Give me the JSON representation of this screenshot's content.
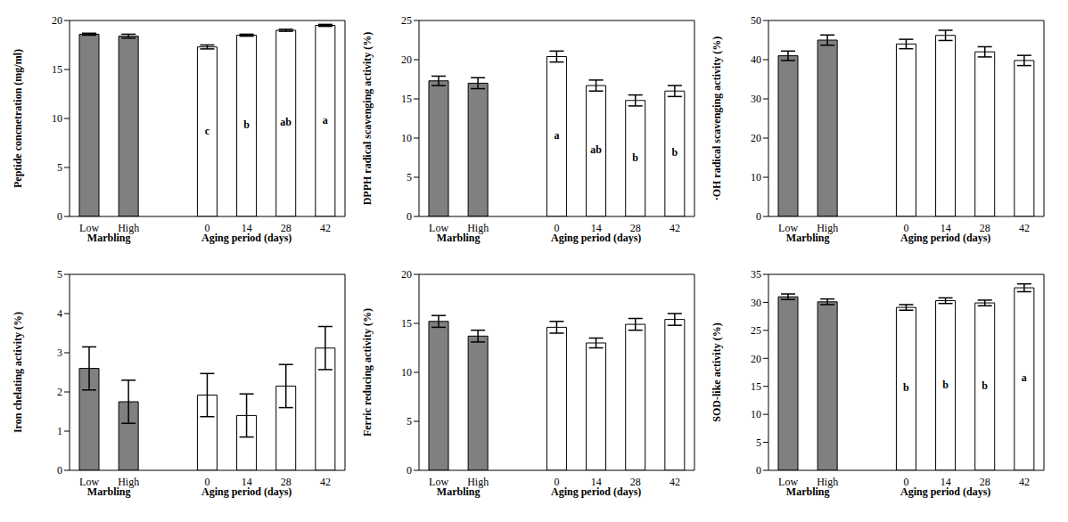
{
  "chart_data": [
    {
      "type": "bar",
      "ylabel": "Peptide concnetration (mg/ml)",
      "categories": [
        "Low",
        "High",
        null,
        "0",
        "14",
        "28",
        "42"
      ],
      "xlabels": [
        "Marbling",
        "Aging period (days)"
      ],
      "values": [
        18.6,
        18.4,
        null,
        17.3,
        18.5,
        19.0,
        19.5
      ],
      "errors": [
        0.1,
        0.2,
        null,
        0.2,
        0.1,
        0.1,
        0.1
      ],
      "annotations": [
        null,
        null,
        null,
        "c",
        "b",
        "ab",
        "a"
      ],
      "colors": [
        "#808080",
        "#808080",
        null,
        "#ffffff",
        "#ffffff",
        "#ffffff",
        "#ffffff"
      ],
      "ylim": [
        0,
        20
      ],
      "yticks": [
        0,
        5,
        10,
        15,
        20
      ]
    },
    {
      "type": "bar",
      "ylabel": "DPPH radical scavenging activity (%)",
      "categories": [
        "Low",
        "High",
        null,
        "0",
        "14",
        "28",
        "42"
      ],
      "xlabels": [
        "Marbling",
        "Aging period (days)"
      ],
      "values": [
        17.3,
        17.0,
        null,
        20.4,
        16.7,
        14.8,
        16.0
      ],
      "errors": [
        0.6,
        0.7,
        null,
        0.7,
        0.7,
        0.7,
        0.7
      ],
      "annotations": [
        null,
        null,
        null,
        "a",
        "ab",
        "b",
        "b"
      ],
      "colors": [
        "#808080",
        "#808080",
        null,
        "#ffffff",
        "#ffffff",
        "#ffffff",
        "#ffffff"
      ],
      "ylim": [
        0,
        25
      ],
      "yticks": [
        0,
        5,
        10,
        15,
        20,
        25
      ]
    },
    {
      "type": "bar",
      "ylabel": "·OH radical scavenging activity (%)",
      "categories": [
        "Low",
        "High",
        null,
        "0",
        "14",
        "28",
        "42"
      ],
      "xlabels": [
        "Marbling",
        "Aging period (days)"
      ],
      "values": [
        41.0,
        45.0,
        null,
        44.0,
        46.2,
        42.0,
        39.8
      ],
      "errors": [
        1.2,
        1.3,
        null,
        1.2,
        1.3,
        1.3,
        1.3
      ],
      "colors": [
        "#808080",
        "#808080",
        null,
        "#ffffff",
        "#ffffff",
        "#ffffff",
        "#ffffff"
      ],
      "ylim": [
        0,
        50
      ],
      "yticks": [
        0,
        10,
        20,
        30,
        40,
        50
      ]
    },
    {
      "type": "bar",
      "ylabel": "Iron chelating activity (%)",
      "categories": [
        "Low",
        "High",
        null,
        "0",
        "14",
        "28",
        "42"
      ],
      "xlabels": [
        "Marbling",
        "Aging period (days)"
      ],
      "values": [
        2.6,
        1.75,
        null,
        1.92,
        1.4,
        2.15,
        3.12
      ],
      "errors": [
        0.55,
        0.55,
        null,
        0.55,
        0.55,
        0.55,
        0.55
      ],
      "colors": [
        "#808080",
        "#808080",
        null,
        "#ffffff",
        "#ffffff",
        "#ffffff",
        "#ffffff"
      ],
      "ylim": [
        0,
        5
      ],
      "yticks": [
        0,
        1,
        2,
        3,
        4,
        5
      ]
    },
    {
      "type": "bar",
      "ylabel": "Ferric reducing activity (%)",
      "categories": [
        "Low",
        "High",
        null,
        "0",
        "14",
        "28",
        "42"
      ],
      "xlabels": [
        "Marbling",
        "Aging period (days)"
      ],
      "values": [
        15.2,
        13.7,
        null,
        14.6,
        13.0,
        14.9,
        15.4
      ],
      "errors": [
        0.6,
        0.6,
        null,
        0.6,
        0.5,
        0.6,
        0.6
      ],
      "colors": [
        "#808080",
        "#808080",
        null,
        "#ffffff",
        "#ffffff",
        "#ffffff",
        "#ffffff"
      ],
      "ylim": [
        0,
        20
      ],
      "yticks": [
        0,
        5,
        10,
        15,
        20
      ]
    },
    {
      "type": "bar",
      "ylabel": "SOD-like activity (%)",
      "categories": [
        "Low",
        "High",
        null,
        "0",
        "14",
        "28",
        "42"
      ],
      "xlabels": [
        "Marbling",
        "Aging period (days)"
      ],
      "values": [
        31.0,
        30.1,
        null,
        29.1,
        30.3,
        29.9,
        32.6
      ],
      "errors": [
        0.5,
        0.5,
        null,
        0.5,
        0.5,
        0.5,
        0.7
      ],
      "annotations": [
        null,
        null,
        null,
        "b",
        "b",
        "b",
        "a"
      ],
      "colors": [
        "#808080",
        "#808080",
        null,
        "#ffffff",
        "#ffffff",
        "#ffffff",
        "#ffffff"
      ],
      "ylim": [
        0,
        35
      ],
      "yticks": [
        0,
        5,
        10,
        15,
        20,
        25,
        30,
        35
      ]
    }
  ]
}
